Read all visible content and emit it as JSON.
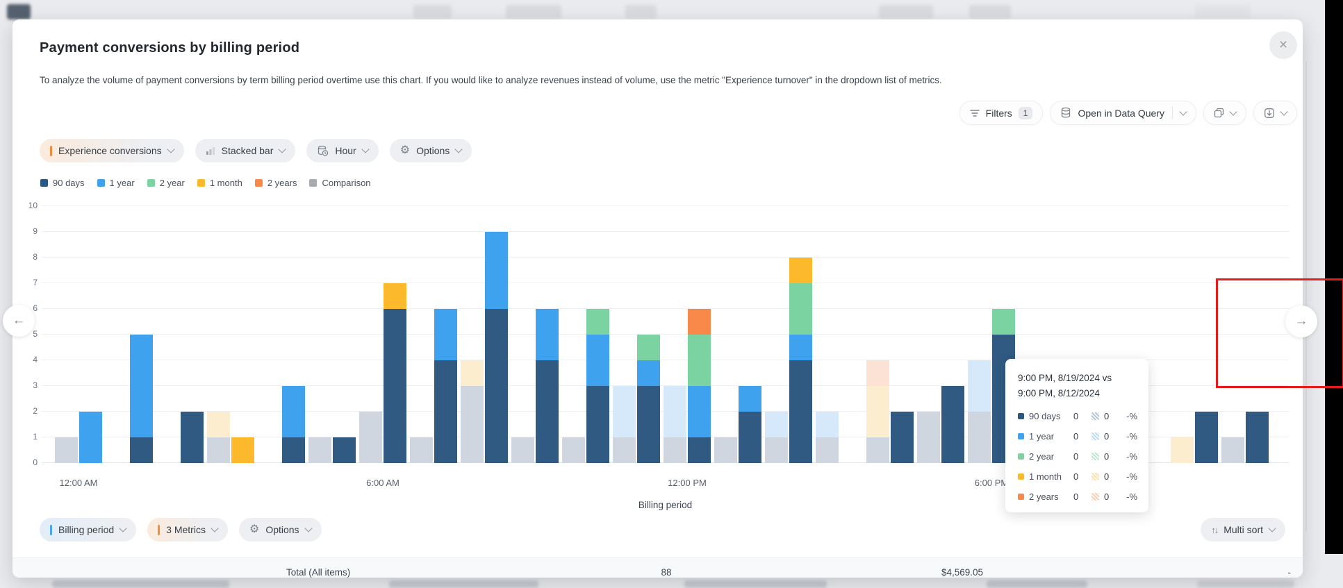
{
  "header": {
    "title": "Payment conversions by billing period",
    "description": "To analyze the volume of payment conversions by term billing period overtime use this chart. If you would like to analyze revenues instead of volume, use the metric \"Experience turnover\" in the dropdown list of metrics."
  },
  "icons": {
    "close": "×",
    "arrow_left": "←",
    "arrow_right": "→",
    "multi_sort": "↑↓",
    "gear": "⚙"
  },
  "toolbar": {
    "filters_label": "Filters",
    "filters_badge": "1",
    "open_in_data_query_label": "Open in Data Query"
  },
  "controls": {
    "metric_pill": "Experience conversions",
    "chart_type_pill": "Stacked bar",
    "granularity_pill": "Hour",
    "options_pill": "Options"
  },
  "footer_controls": {
    "dimension_pill": "Billing period",
    "metrics_pill": "3 Metrics",
    "options_pill": "Options",
    "multi_sort_label": "Multi sort"
  },
  "legend": {
    "items": [
      {
        "label": "90 days",
        "color": "#2A5783"
      },
      {
        "label": "1 year",
        "color": "#3FA2EE"
      },
      {
        "label": "2 year",
        "color": "#7CD3A2"
      },
      {
        "label": "1 month",
        "color": "#FBB92B"
      },
      {
        "label": "2 years",
        "color": "#F9894B"
      },
      {
        "label": "Comparison",
        "color": "#A7ACB3"
      }
    ]
  },
  "tooltip": {
    "title_line1": "9:00 PM, 8/19/2024 vs",
    "title_line2": "9:00 PM, 8/12/2024",
    "rows": [
      {
        "label": "90 days",
        "current": "0",
        "comparison": "0",
        "change": "-%",
        "color": "#2A5783",
        "faded_color": "#B7C8D8"
      },
      {
        "label": "1 year",
        "current": "0",
        "comparison": "0",
        "change": "-%",
        "color": "#3FA2EE",
        "faded_color": "#BBDDF8"
      },
      {
        "label": "2 year",
        "current": "0",
        "comparison": "0",
        "change": "-%",
        "color": "#7CD3A2",
        "faded_color": "#BFE8CF"
      },
      {
        "label": "1 month",
        "current": "0",
        "comparison": "0",
        "change": "-%",
        "color": "#FBB92B",
        "faded_color": "#FBE3A9"
      },
      {
        "label": "2 years",
        "current": "0",
        "comparison": "0",
        "change": "-%",
        "color": "#F9894B",
        "faded_color": "#FBD0B4"
      }
    ]
  },
  "total_row": {
    "label": "Total (All items)",
    "count": "88",
    "revenue": "$4,569.05",
    "extra": "-"
  },
  "chart_data": {
    "type": "bar",
    "subtype": "stacked bars, current period vs previous-week comparison (faded bars)",
    "title": "Payment conversions by billing period",
    "xlabel": "Billing period",
    "ylabel": "",
    "ylim": [
      0,
      10
    ],
    "grid": true,
    "legend_position": "top-left",
    "x_tick_labels": [
      {
        "index": 0,
        "label": "12:00 AM"
      },
      {
        "index": 6,
        "label": "6:00 AM"
      },
      {
        "index": 12,
        "label": "12:00 PM"
      },
      {
        "index": 18,
        "label": "6:00 PM"
      }
    ],
    "series": [
      {
        "id": "90d",
        "name": "90 days",
        "color": "#305A82"
      },
      {
        "id": "1y",
        "name": "1 year",
        "color": "#3FA2EE"
      },
      {
        "id": "2y",
        "name": "2 year",
        "color": "#7CD3A2"
      },
      {
        "id": "1m",
        "name": "1 month",
        "color": "#FBB92B"
      },
      {
        "id": "2yrs",
        "name": "2 years",
        "color": "#F9894B"
      },
      {
        "id": "comp",
        "name": "Comparison",
        "color": "#CFD6E0"
      },
      {
        "id": "f1y",
        "name": "1 year (comparison)",
        "color": "#D6E9FB"
      },
      {
        "id": "f1m",
        "name": "1 month (comparison)",
        "color": "#FBEDCE"
      },
      {
        "id": "f2yrs",
        "name": "2 years (comparison)",
        "color": "#FBE2D4"
      }
    ],
    "bars": [
      {
        "comparison": [
          [
            "comp",
            1
          ]
        ],
        "current": [
          [
            "1y",
            2
          ]
        ]
      },
      {
        "comparison": [],
        "current": [
          [
            "90d",
            1
          ],
          [
            "1y",
            4
          ]
        ]
      },
      {
        "comparison": [],
        "current": [
          [
            "90d",
            2
          ]
        ]
      },
      {
        "comparison": [
          [
            "comp",
            1
          ],
          [
            "f1m",
            1
          ]
        ],
        "current": [
          [
            "1m",
            1
          ]
        ]
      },
      {
        "comparison": [],
        "current": [
          [
            "90d",
            1
          ],
          [
            "1y",
            2
          ]
        ]
      },
      {
        "comparison": [
          [
            "comp",
            1
          ]
        ],
        "current": [
          [
            "90d",
            1
          ]
        ]
      },
      {
        "comparison": [
          [
            "comp",
            2
          ]
        ],
        "current": [
          [
            "90d",
            6
          ],
          [
            "1m",
            1
          ]
        ]
      },
      {
        "comparison": [
          [
            "comp",
            1
          ]
        ],
        "current": [
          [
            "90d",
            4
          ],
          [
            "1y",
            2
          ]
        ]
      },
      {
        "comparison": [
          [
            "comp",
            3
          ],
          [
            "f1m",
            1
          ]
        ],
        "current": [
          [
            "90d",
            6
          ],
          [
            "1y",
            3
          ]
        ]
      },
      {
        "comparison": [
          [
            "comp",
            1
          ]
        ],
        "current": [
          [
            "90d",
            4
          ],
          [
            "1y",
            2
          ]
        ]
      },
      {
        "comparison": [
          [
            "comp",
            1
          ]
        ],
        "current": [
          [
            "90d",
            3
          ],
          [
            "1y",
            2
          ],
          [
            "2y",
            1
          ]
        ]
      },
      {
        "comparison": [
          [
            "comp",
            1
          ],
          [
            "f1y",
            2
          ]
        ],
        "current": [
          [
            "90d",
            3
          ],
          [
            "1y",
            1
          ],
          [
            "2y",
            1
          ]
        ]
      },
      {
        "comparison": [
          [
            "comp",
            1
          ],
          [
            "f1y",
            2
          ]
        ],
        "current": [
          [
            "90d",
            1
          ],
          [
            "1y",
            2
          ],
          [
            "2y",
            2
          ],
          [
            "2yrs",
            1
          ]
        ]
      },
      {
        "comparison": [
          [
            "comp",
            1
          ]
        ],
        "current": [
          [
            "90d",
            2
          ],
          [
            "1y",
            1
          ]
        ]
      },
      {
        "comparison": [
          [
            "comp",
            1
          ],
          [
            "f1y",
            1
          ]
        ],
        "current": [
          [
            "90d",
            4
          ],
          [
            "1y",
            1
          ],
          [
            "2y",
            2
          ],
          [
            "1m",
            1
          ]
        ]
      },
      {
        "comparison": [
          [
            "comp",
            1
          ],
          [
            "f1y",
            1
          ]
        ],
        "current": []
      },
      {
        "comparison": [
          [
            "comp",
            1
          ],
          [
            "f1m",
            2
          ],
          [
            "f2yrs",
            1
          ]
        ],
        "current": [
          [
            "90d",
            2
          ]
        ]
      },
      {
        "comparison": [
          [
            "comp",
            2
          ]
        ],
        "current": [
          [
            "90d",
            3
          ]
        ]
      },
      {
        "comparison": [
          [
            "comp",
            2
          ],
          [
            "f1y",
            2
          ]
        ],
        "current": [
          [
            "90d",
            5
          ],
          [
            "2y",
            1
          ]
        ]
      },
      {
        "comparison": [],
        "current": []
      },
      {
        "comparison": [],
        "current": []
      },
      {
        "comparison": [],
        "current": []
      },
      {
        "comparison": [
          [
            "f1m",
            1
          ]
        ],
        "current": [
          [
            "90d",
            2
          ]
        ]
      },
      {
        "comparison": [
          [
            "comp",
            1
          ]
        ],
        "current": [
          [
            "90d",
            2
          ]
        ]
      }
    ]
  }
}
